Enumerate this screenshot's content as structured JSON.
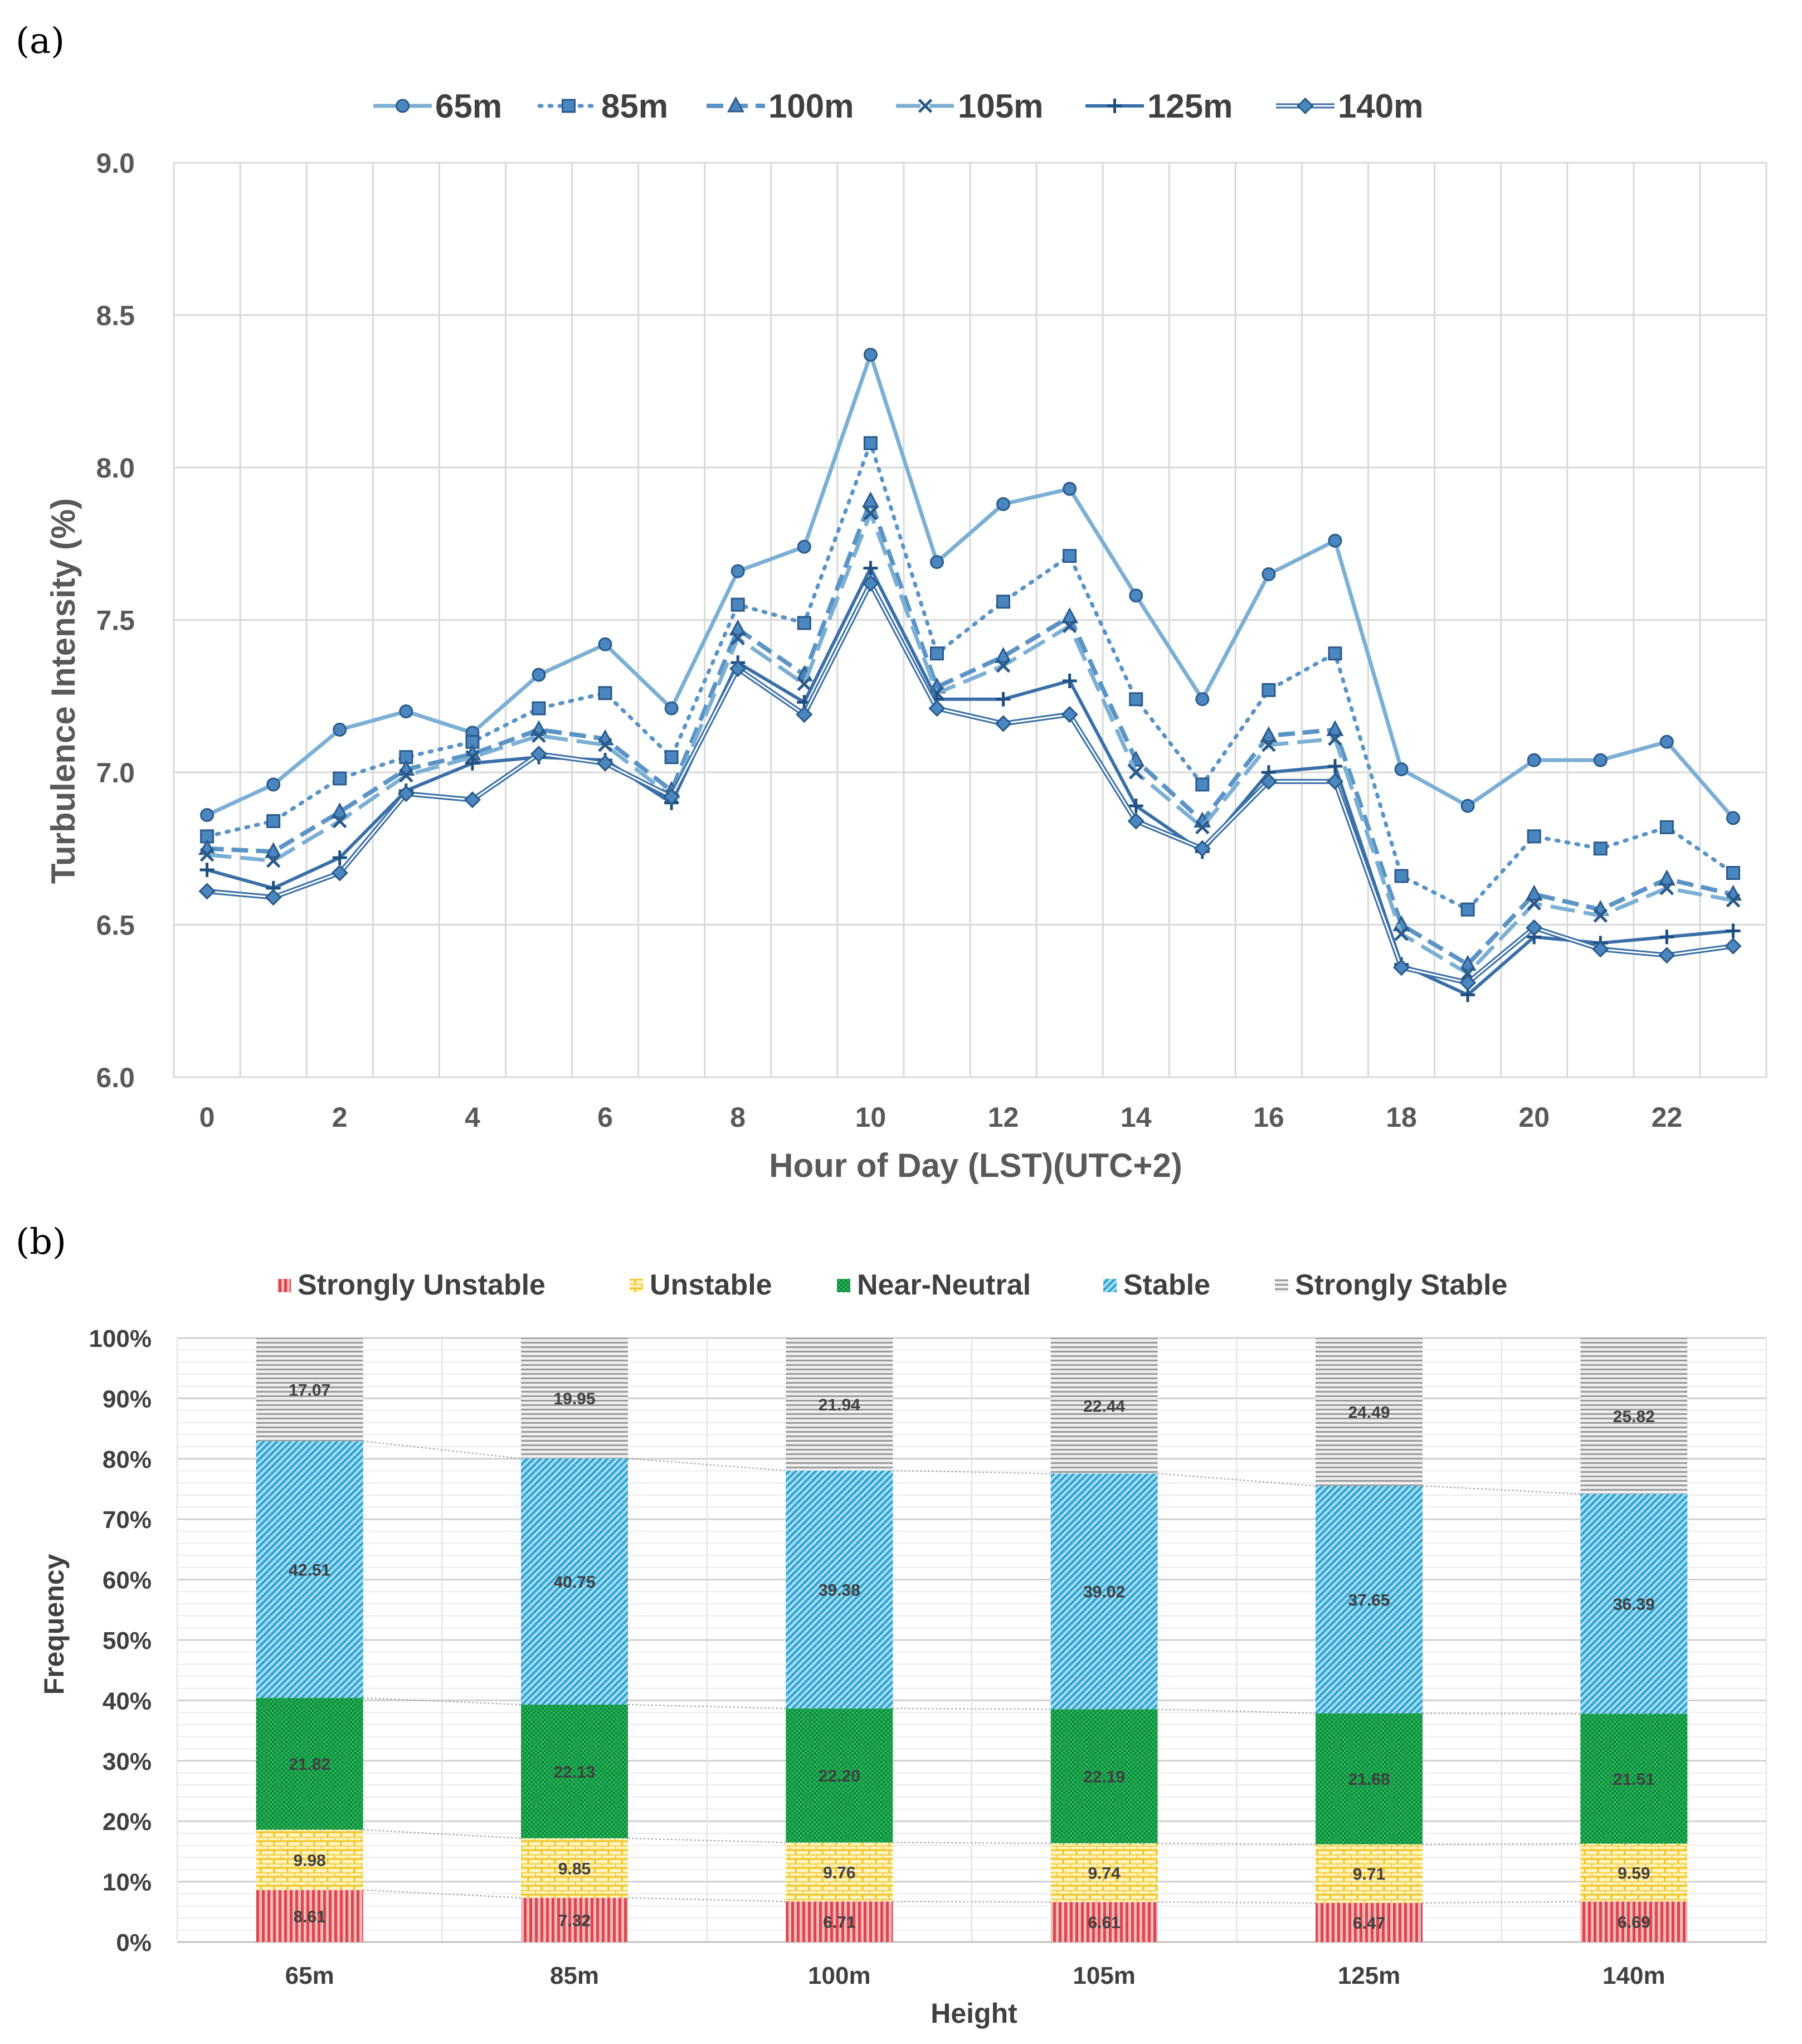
{
  "panel_a_label": "(a)",
  "panel_b_label": "(b)",
  "colors": {
    "line_light": "#7bafd4",
    "line_mid": "#5a94c6",
    "line_dark": "#3a6fa8",
    "marker_edge": "#2a5a8a",
    "grid": "#d9d9d9",
    "strongly_unstable": "#d9484e",
    "unstable": "#f2d14a",
    "near_neutral": "#139a43",
    "stable": "#3aaed8",
    "strongly_stable": "#a6a6a6"
  },
  "chart_data": [
    {
      "type": "line",
      "title": "",
      "xlabel": "Hour of Day (LST)(UTC+2)",
      "ylabel": "Turbulence Intensity (%)",
      "xlim": [
        0,
        23
      ],
      "ylim": [
        6.0,
        9.0
      ],
      "x": [
        0,
        1,
        2,
        3,
        4,
        5,
        6,
        7,
        8,
        9,
        10,
        11,
        12,
        13,
        14,
        15,
        16,
        17,
        18,
        19,
        20,
        21,
        22,
        23
      ],
      "x_ticks": [
        "0",
        "2",
        "4",
        "6",
        "8",
        "10",
        "12",
        "14",
        "16",
        "18",
        "20",
        "22"
      ],
      "y_ticks": [
        "6.0",
        "6.5",
        "7.0",
        "7.5",
        "8.0",
        "8.5",
        "9.0"
      ],
      "legend_position": "top",
      "series": [
        {
          "name": "65m",
          "style": "solid",
          "marker": "circle",
          "values": [
            6.86,
            6.96,
            7.14,
            7.2,
            7.13,
            7.32,
            7.42,
            7.21,
            7.66,
            7.74,
            8.37,
            7.69,
            7.88,
            7.93,
            7.58,
            7.24,
            7.65,
            7.76,
            7.01,
            6.89,
            7.04,
            7.04,
            7.1,
            6.85
          ]
        },
        {
          "name": "85m",
          "style": "dotted",
          "marker": "square",
          "values": [
            6.79,
            6.84,
            6.98,
            7.05,
            7.1,
            7.21,
            7.26,
            7.05,
            7.55,
            7.49,
            8.08,
            7.39,
            7.56,
            7.71,
            7.24,
            6.96,
            7.27,
            7.39,
            6.66,
            6.55,
            6.79,
            6.75,
            6.82,
            6.67
          ]
        },
        {
          "name": "100m",
          "style": "dash",
          "marker": "triangle",
          "values": [
            6.75,
            6.74,
            6.87,
            7.01,
            7.06,
            7.14,
            7.11,
            6.94,
            7.47,
            7.32,
            7.89,
            7.28,
            7.38,
            7.51,
            7.04,
            6.84,
            7.12,
            7.14,
            6.5,
            6.37,
            6.6,
            6.55,
            6.65,
            6.6
          ]
        },
        {
          "name": "105m",
          "style": "longdash",
          "marker": "x",
          "values": [
            6.73,
            6.71,
            6.84,
            6.99,
            7.05,
            7.12,
            7.09,
            6.92,
            7.44,
            7.29,
            7.85,
            7.26,
            7.35,
            7.48,
            7.0,
            6.82,
            7.09,
            7.11,
            6.47,
            6.34,
            6.57,
            6.53,
            6.62,
            6.58
          ]
        },
        {
          "name": "125m",
          "style": "solid",
          "marker": "plus",
          "values": [
            6.68,
            6.62,
            6.72,
            6.94,
            7.03,
            7.05,
            7.04,
            6.9,
            7.36,
            7.23,
            7.67,
            7.24,
            7.24,
            7.3,
            6.89,
            6.74,
            7.0,
            7.02,
            6.37,
            6.27,
            6.46,
            6.44,
            6.46,
            6.48
          ]
        },
        {
          "name": "140m",
          "style": "double",
          "marker": "diamond",
          "values": [
            6.61,
            6.59,
            6.67,
            6.93,
            6.91,
            7.06,
            7.03,
            6.92,
            7.34,
            7.19,
            7.62,
            7.21,
            7.16,
            7.19,
            6.84,
            6.75,
            6.97,
            6.97,
            6.36,
            6.31,
            6.49,
            6.42,
            6.4,
            6.43
          ]
        }
      ]
    },
    {
      "type": "bar",
      "stacked": true,
      "title": "",
      "xlabel": "Height",
      "ylabel": "Frequency",
      "ylim": [
        0,
        100
      ],
      "y_ticks": [
        "0%",
        "10%",
        "20%",
        "30%",
        "40%",
        "50%",
        "60%",
        "70%",
        "80%",
        "90%",
        "100%"
      ],
      "categories": [
        "65m",
        "85m",
        "100m",
        "105m",
        "125m",
        "140m"
      ],
      "legend_position": "top",
      "series": [
        {
          "name": "Strongly Unstable",
          "values": [
            8.61,
            7.32,
            6.71,
            6.61,
            6.47,
            6.69
          ],
          "labels": [
            "8.61",
            "7.32",
            "6.71",
            "6.61",
            "6.47",
            "6.69"
          ]
        },
        {
          "name": "Unstable",
          "values": [
            9.98,
            9.85,
            9.76,
            9.74,
            9.71,
            9.59
          ],
          "labels": [
            "9.98",
            "9.85",
            "9.76",
            "9.74",
            "9.71",
            "9.59"
          ]
        },
        {
          "name": "Near-Neutral",
          "values": [
            21.82,
            22.13,
            22.2,
            22.19,
            21.68,
            21.51
          ],
          "labels": [
            "21.82",
            "22.13",
            "22.20",
            "22.19",
            "21.68",
            "21.51"
          ]
        },
        {
          "name": "Stable",
          "values": [
            42.51,
            40.75,
            39.38,
            39.02,
            37.65,
            36.39
          ],
          "labels": [
            "42.51",
            "40.75",
            "39.38",
            "39.02",
            "37.65",
            "36.39"
          ]
        },
        {
          "name": "Strongly Stable",
          "values": [
            17.07,
            19.95,
            21.94,
            22.44,
            24.49,
            25.82
          ],
          "labels": [
            "17.07",
            "19.95",
            "21.94",
            "22.44",
            "24.49",
            "25.82"
          ]
        }
      ]
    }
  ]
}
